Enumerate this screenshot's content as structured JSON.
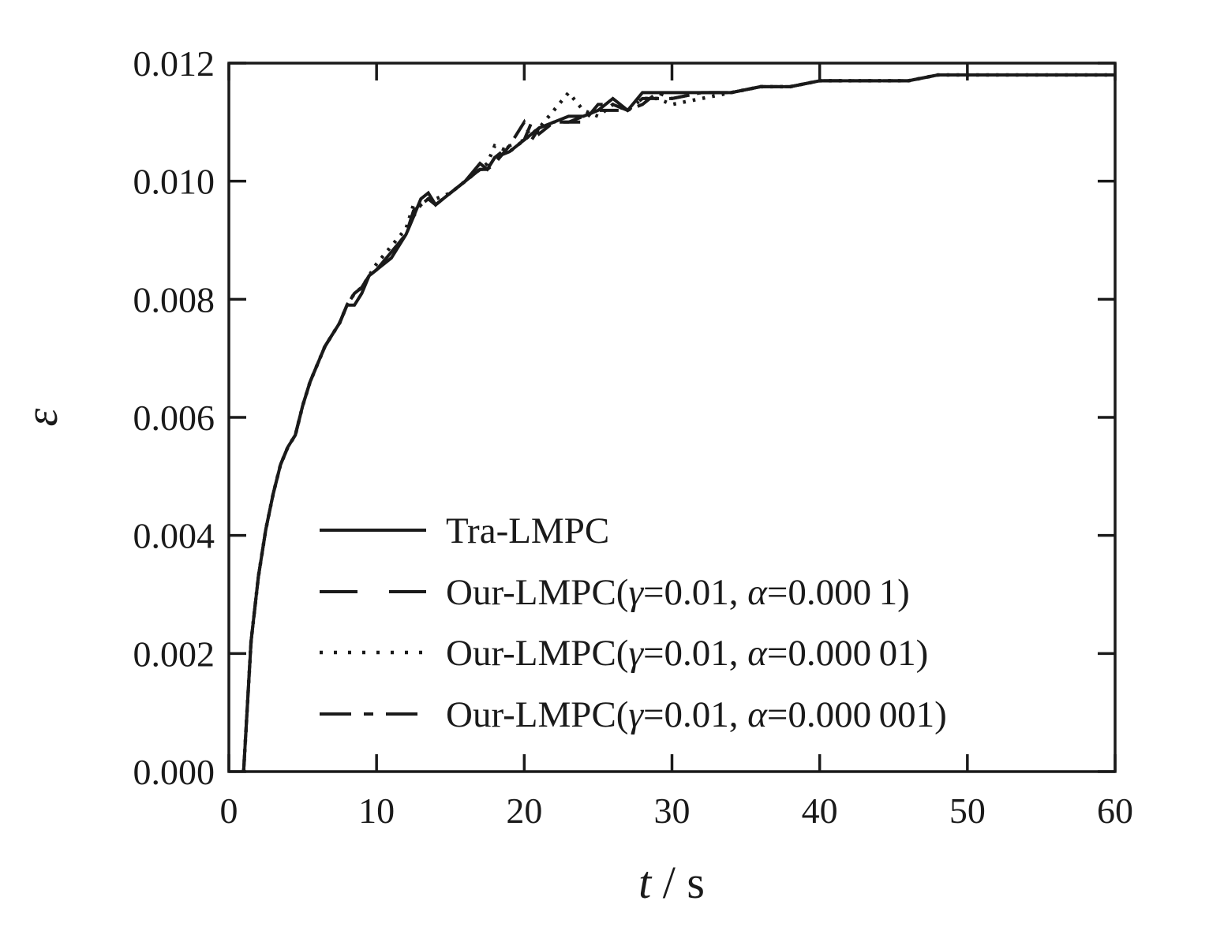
{
  "figure": {
    "background": "#ffffff",
    "ink_color": "#1a1a1a"
  },
  "chart_data": {
    "type": "line",
    "title": "",
    "xlabel_italic": "t",
    "xlabel_rest": " / s",
    "ylabel": "ε",
    "xlim": [
      0,
      60
    ],
    "ylim": [
      0,
      0.012
    ],
    "grid": false,
    "legend_position": "lower-left-inside",
    "xticks": {
      "values": [
        0,
        10,
        20,
        30,
        40,
        50,
        60
      ],
      "labels": [
        "0",
        "10",
        "20",
        "30",
        "40",
        "50",
        "60"
      ]
    },
    "yticks": {
      "values": [
        0,
        0.002,
        0.004,
        0.006,
        0.008,
        0.01,
        0.012
      ],
      "labels": [
        "0.000",
        "0.002",
        "0.004",
        "0.006",
        "0.008",
        "0.010",
        "0.012"
      ]
    },
    "x": [
      1,
      1.5,
      2,
      2.5,
      3,
      3.5,
      4,
      4.5,
      5,
      5.5,
      6,
      6.5,
      7,
      7.5,
      8,
      8.5,
      9,
      9.5,
      10,
      11,
      12,
      12.5,
      13,
      13.5,
      14,
      15,
      16,
      17,
      17.5,
      18,
      19,
      20,
      20.5,
      21,
      22,
      23,
      24,
      25,
      26,
      27,
      28,
      29,
      30,
      32,
      34,
      36,
      38,
      40,
      42,
      44,
      46,
      48,
      50,
      52,
      54,
      56,
      58,
      60
    ],
    "series": [
      {
        "name": "tra-lmpc",
        "line_style": "solid",
        "label_parts": [
          {
            "text": "Tra-LMPC",
            "italic": false
          }
        ],
        "y": [
          0.0,
          0.0022,
          0.0033,
          0.0041,
          0.0047,
          0.0052,
          0.0055,
          0.0057,
          0.0062,
          0.0066,
          0.0069,
          0.0072,
          0.0074,
          0.0076,
          0.0079,
          0.0079,
          0.0081,
          0.0084,
          0.0085,
          0.0087,
          0.0091,
          0.0094,
          0.0097,
          0.0098,
          0.0096,
          0.0098,
          0.01,
          0.0103,
          0.0102,
          0.0104,
          0.0105,
          0.0107,
          0.0108,
          0.0109,
          0.011,
          0.0111,
          0.0111,
          0.0112,
          0.0114,
          0.0112,
          0.0115,
          0.0115,
          0.0115,
          0.0115,
          0.0115,
          0.0116,
          0.0116,
          0.0117,
          0.0117,
          0.0117,
          0.0117,
          0.0118,
          0.0118,
          0.0118,
          0.0118,
          0.0118,
          0.0118,
          0.0118
        ]
      },
      {
        "name": "our-lmpc-alpha-1e-4",
        "line_style": "dashed",
        "label_parts": [
          {
            "text": "Our-LMPC(",
            "italic": false
          },
          {
            "text": "γ",
            "italic": true
          },
          {
            "text": "=0.01, ",
            "italic": false
          },
          {
            "text": "α",
            "italic": true
          },
          {
            "text": "=0.000 1)",
            "italic": false
          }
        ],
        "y": [
          0.0,
          0.0022,
          0.0033,
          0.0041,
          0.0047,
          0.0052,
          0.0055,
          0.0057,
          0.0062,
          0.0066,
          0.0069,
          0.0072,
          0.0074,
          0.0076,
          0.0079,
          0.0081,
          0.0082,
          0.0084,
          0.0085,
          0.0088,
          0.0091,
          0.0095,
          0.0096,
          0.0097,
          0.0096,
          0.0098,
          0.01,
          0.0102,
          0.0102,
          0.0103,
          0.0106,
          0.0107,
          0.011,
          0.0108,
          0.011,
          0.011,
          0.011,
          0.0113,
          0.0113,
          0.0112,
          0.0114,
          0.0114,
          0.0114,
          0.0115,
          0.0115,
          0.0116,
          0.0116,
          0.0117,
          0.0117,
          0.0117,
          0.0117,
          0.0118,
          0.0118,
          0.0118,
          0.0118,
          0.0118,
          0.0118,
          0.0118
        ]
      },
      {
        "name": "our-lmpc-alpha-1e-5",
        "line_style": "dotted",
        "label_parts": [
          {
            "text": "Our-LMPC(",
            "italic": false
          },
          {
            "text": "γ",
            "italic": true
          },
          {
            "text": "=0.01, ",
            "italic": false
          },
          {
            "text": "α",
            "italic": true
          },
          {
            "text": "=0.000 01)",
            "italic": false
          }
        ],
        "y": [
          0.0,
          0.0022,
          0.0033,
          0.0041,
          0.0047,
          0.0052,
          0.0055,
          0.0057,
          0.0062,
          0.0066,
          0.0069,
          0.0072,
          0.0074,
          0.0076,
          0.0079,
          0.0081,
          0.0082,
          0.0084,
          0.0086,
          0.0089,
          0.0092,
          0.0096,
          0.0096,
          0.0097,
          0.0097,
          0.0098,
          0.01,
          0.0102,
          0.0103,
          0.0106,
          0.0105,
          0.0107,
          0.0108,
          0.0109,
          0.0112,
          0.0115,
          0.0112,
          0.0111,
          0.0113,
          0.0112,
          0.0114,
          0.0114,
          0.0113,
          0.0114,
          0.0115,
          0.0116,
          0.0116,
          0.0117,
          0.0117,
          0.0117,
          0.0117,
          0.0118,
          0.0118,
          0.0118,
          0.0118,
          0.0118,
          0.0118,
          0.0118
        ]
      },
      {
        "name": "our-lmpc-alpha-1e-6",
        "line_style": "dashdot",
        "label_parts": [
          {
            "text": "Our-LMPC(",
            "italic": false
          },
          {
            "text": "γ",
            "italic": true
          },
          {
            "text": "=0.01, ",
            "italic": false
          },
          {
            "text": "α",
            "italic": true
          },
          {
            "text": "=0.000 001)",
            "italic": false
          }
        ],
        "y": [
          0.0,
          0.0022,
          0.0033,
          0.0041,
          0.0047,
          0.0052,
          0.0055,
          0.0057,
          0.0062,
          0.0066,
          0.0069,
          0.0072,
          0.0074,
          0.0076,
          0.0079,
          0.0081,
          0.0082,
          0.0084,
          0.0085,
          0.0088,
          0.0091,
          0.0094,
          0.0096,
          0.0097,
          0.0096,
          0.0098,
          0.01,
          0.0102,
          0.0102,
          0.0104,
          0.0106,
          0.011,
          0.0107,
          0.0109,
          0.011,
          0.011,
          0.0111,
          0.0112,
          0.0112,
          0.0112,
          0.0113,
          0.0115,
          0.0114,
          0.0115,
          0.0115,
          0.0116,
          0.0116,
          0.0117,
          0.0117,
          0.0117,
          0.0117,
          0.0118,
          0.0118,
          0.0118,
          0.0118,
          0.0118,
          0.0118,
          0.0118
        ]
      }
    ]
  }
}
